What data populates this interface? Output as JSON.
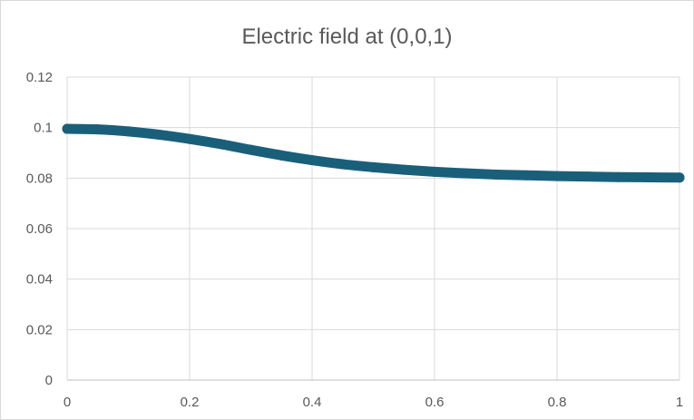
{
  "chart_data": {
    "type": "line",
    "title": "Electric field at (0,0,1)",
    "xlabel": "",
    "ylabel": "",
    "xlim": [
      0,
      1
    ],
    "ylim": [
      0,
      0.12
    ],
    "x_ticks": [
      "0",
      "0.2",
      "0.4",
      "0.6",
      "0.8",
      "1"
    ],
    "y_ticks": [
      "0",
      "0.02",
      "0.04",
      "0.06",
      "0.08",
      "0.1",
      "0.12"
    ],
    "grid": true,
    "legend": "none",
    "series": [
      {
        "color": "#1a5f7a",
        "x": [
          0,
          0.05,
          0.1,
          0.15,
          0.2,
          0.25,
          0.3,
          0.35,
          0.4,
          0.45,
          0.5,
          0.55,
          0.6,
          0.65,
          0.7,
          0.75,
          0.8,
          0.85,
          0.9,
          0.95,
          1
        ],
        "y": [
          0.0995,
          0.0993,
          0.0985,
          0.0972,
          0.0955,
          0.0935,
          0.0912,
          0.089,
          0.0871,
          0.0855,
          0.0843,
          0.0833,
          0.0825,
          0.0819,
          0.0814,
          0.0811,
          0.0808,
          0.0806,
          0.0804,
          0.0803,
          0.0802
        ]
      }
    ]
  }
}
